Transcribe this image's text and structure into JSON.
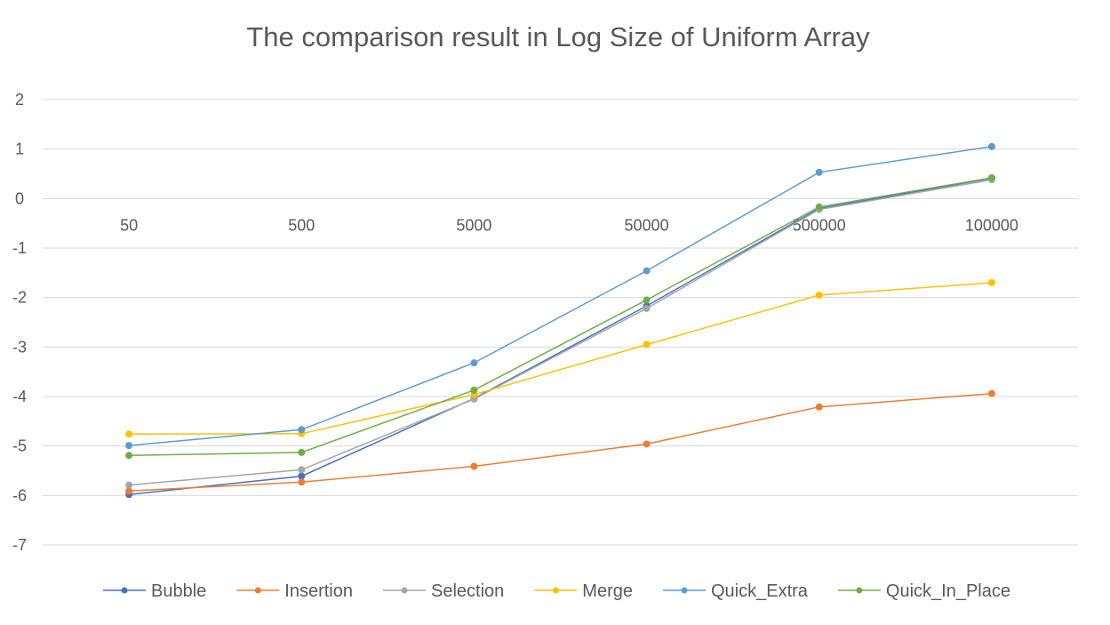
{
  "chart_data": {
    "type": "line",
    "title": "The comparison result in Log Size of Uniform Array",
    "xlabel": "",
    "ylabel": "",
    "categories": [
      "50",
      "500",
      "5000",
      "50000",
      "500000",
      "100000"
    ],
    "y_ticks": [
      "2",
      "1",
      "0",
      "-1",
      "-2",
      "-3",
      "-4",
      "-5",
      "-6",
      "-7"
    ],
    "ylim": [
      -7,
      2
    ],
    "grid": true,
    "legend_position": "bottom",
    "series": [
      {
        "name": "Bubble",
        "color": "#4472C4",
        "values": [
          -5.98,
          -5.61,
          -4.04,
          -2.17,
          -0.2,
          0.41
        ]
      },
      {
        "name": "Insertion",
        "color": "#ED7D31",
        "values": [
          -5.91,
          -5.73,
          -5.41,
          -4.96,
          -4.21,
          -3.94
        ]
      },
      {
        "name": "Selection",
        "color": "#A5A5A5",
        "values": [
          -5.79,
          -5.48,
          -4.05,
          -2.22,
          -0.22,
          0.38
        ]
      },
      {
        "name": "Merge",
        "color": "#FFC000",
        "values": [
          -4.76,
          -4.75,
          -3.96,
          -2.95,
          -1.95,
          -1.7
        ]
      },
      {
        "name": "Quick_Extra",
        "color": "#5B9BD5",
        "values": [
          -4.99,
          -4.67,
          -3.32,
          -1.46,
          0.53,
          1.05
        ]
      },
      {
        "name": "Quick_In_Place",
        "color": "#70AD47",
        "values": [
          -5.19,
          -5.13,
          -3.87,
          -2.05,
          -0.17,
          0.42
        ]
      }
    ]
  }
}
